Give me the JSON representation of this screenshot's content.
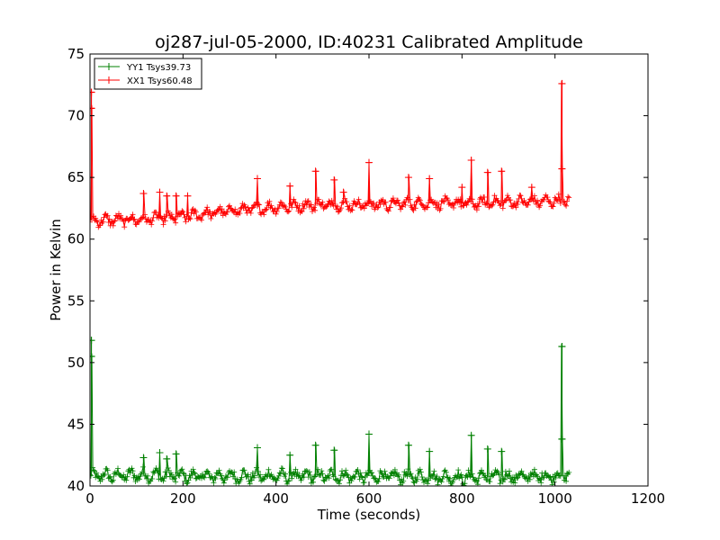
{
  "chart_data": {
    "type": "line",
    "title": "oj287-jul-05-2000, ID:40231 Calibrated Amplitude",
    "xlabel": "Time (seconds)",
    "ylabel": "Power in Kelvin",
    "xlim": [
      0,
      1200
    ],
    "ylim": [
      40,
      75
    ],
    "xticks": [
      0,
      200,
      400,
      600,
      800,
      1000,
      1200
    ],
    "yticks": [
      40,
      45,
      50,
      55,
      60,
      65,
      70,
      75
    ],
    "grid": false,
    "legend_position": "top-left",
    "series": [
      {
        "name": "YY1 Tsys39.73",
        "color": "#008000",
        "marker": "+",
        "x_range": [
          0,
          1030
        ],
        "startup_spike": {
          "x": 3,
          "y": [
            50.5,
            51.8
          ]
        },
        "trend": [
          [
            0,
            40.8
          ],
          [
            100,
            40.9
          ],
          [
            200,
            40.8
          ],
          [
            300,
            40.8
          ],
          [
            400,
            40.8
          ],
          [
            600,
            40.8
          ],
          [
            800,
            40.7
          ],
          [
            1000,
            40.8
          ],
          [
            1030,
            40.9
          ]
        ],
        "noise_band": 0.7,
        "end_spike": {
          "x": 1015,
          "y": [
            51.3,
            43.8
          ]
        },
        "spikes": [
          [
            115,
            42.3
          ],
          [
            150,
            42.7
          ],
          [
            165,
            42.2
          ],
          [
            185,
            42.6
          ],
          [
            360,
            43.1
          ],
          [
            430,
            42.5
          ],
          [
            485,
            43.3
          ],
          [
            525,
            42.9
          ],
          [
            600,
            44.2
          ],
          [
            685,
            43.3
          ],
          [
            730,
            42.8
          ],
          [
            820,
            44.1
          ],
          [
            855,
            43.0
          ],
          [
            885,
            42.8
          ]
        ]
      },
      {
        "name": "XX1 Tsys60.48",
        "color": "#ff0000",
        "marker": "+",
        "x_range": [
          0,
          1030
        ],
        "startup_spike": {
          "x": 3,
          "y": [
            70.6,
            71.9
          ]
        },
        "trend": [
          [
            0,
            61.5
          ],
          [
            100,
            61.6
          ],
          [
            200,
            61.8
          ],
          [
            300,
            62.3
          ],
          [
            400,
            62.6
          ],
          [
            500,
            62.8
          ],
          [
            600,
            62.8
          ],
          [
            700,
            62.9
          ],
          [
            800,
            62.9
          ],
          [
            900,
            63.0
          ],
          [
            1000,
            63.1
          ],
          [
            1030,
            63.1
          ]
        ],
        "noise_band": 0.6,
        "end_spike": {
          "x": 1015,
          "y": [
            72.6,
            65.7
          ]
        },
        "spikes": [
          [
            115,
            63.7
          ],
          [
            150,
            63.8
          ],
          [
            165,
            63.5
          ],
          [
            185,
            63.5
          ],
          [
            210,
            63.5
          ],
          [
            360,
            64.9
          ],
          [
            430,
            64.3
          ],
          [
            485,
            65.5
          ],
          [
            525,
            64.8
          ],
          [
            545,
            63.8
          ],
          [
            600,
            66.2
          ],
          [
            685,
            65.0
          ],
          [
            730,
            64.9
          ],
          [
            800,
            64.2
          ],
          [
            820,
            66.4
          ],
          [
            855,
            65.4
          ],
          [
            885,
            65.5
          ],
          [
            950,
            64.2
          ]
        ]
      }
    ]
  }
}
